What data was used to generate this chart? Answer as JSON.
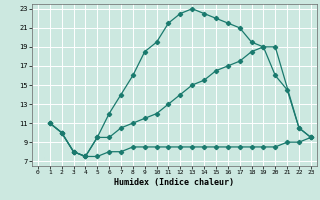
{
  "xlabel": "Humidex (Indice chaleur)",
  "bg_color": "#cce8e0",
  "grid_color": "#ffffff",
  "line_color": "#1a7a6e",
  "xlim": [
    -0.5,
    23.5
  ],
  "ylim": [
    6.5,
    23.5
  ],
  "xticks": [
    0,
    1,
    2,
    3,
    4,
    5,
    6,
    7,
    8,
    9,
    10,
    11,
    12,
    13,
    14,
    15,
    16,
    17,
    18,
    19,
    20,
    21,
    22,
    23
  ],
  "yticks": [
    7,
    9,
    11,
    13,
    15,
    17,
    19,
    21,
    23
  ],
  "curve1_x": [
    1,
    2,
    3,
    4,
    5,
    6,
    7,
    8,
    9,
    10,
    11,
    12,
    13,
    14,
    15,
    16,
    17,
    18,
    19,
    20,
    22,
    23
  ],
  "curve1_y": [
    11,
    10,
    8,
    7.5,
    9.5,
    12,
    14,
    16,
    18.5,
    19.5,
    21.5,
    22.5,
    23,
    22.5,
    22,
    21.5,
    21,
    19.5,
    19,
    19,
    10.5,
    9.5
  ],
  "curve2_x": [
    1,
    2,
    3,
    4,
    5,
    6,
    7,
    8,
    9,
    10,
    11,
    12,
    13,
    14,
    15,
    16,
    17,
    18,
    19,
    20,
    21,
    22,
    23
  ],
  "curve2_y": [
    11,
    10,
    8,
    7.5,
    9.5,
    9.5,
    10.5,
    11,
    11.5,
    12,
    13,
    14,
    15,
    15.5,
    16.5,
    17,
    17.5,
    18.5,
    19,
    16,
    14.5,
    10.5,
    9.5
  ],
  "curve3_x": [
    1,
    2,
    3,
    4,
    5,
    6,
    7,
    8,
    9,
    10,
    11,
    12,
    13,
    14,
    15,
    16,
    17,
    18,
    19,
    20,
    21,
    22,
    23
  ],
  "curve3_y": [
    11,
    10,
    8,
    7.5,
    7.5,
    8,
    8,
    8.5,
    8.5,
    8.5,
    8.5,
    8.5,
    8.5,
    8.5,
    8.5,
    8.5,
    8.5,
    8.5,
    8.5,
    8.5,
    9,
    9,
    9.5
  ]
}
